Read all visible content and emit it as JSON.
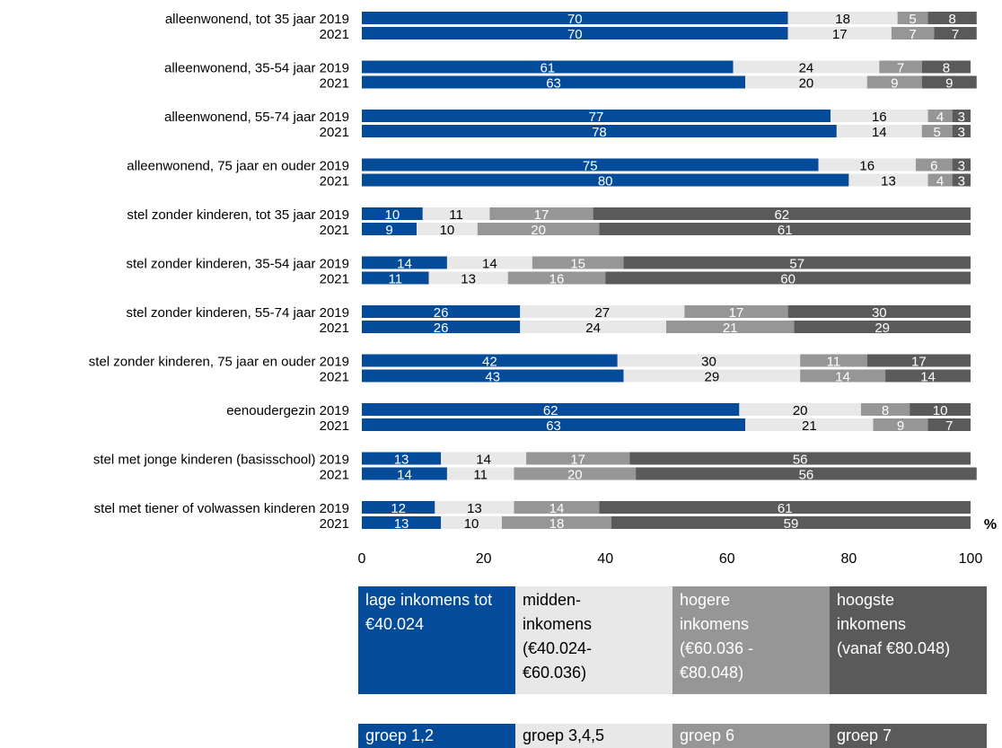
{
  "chart_data": {
    "type": "bar",
    "orientation": "horizontal",
    "stacked": true,
    "unit_label": "%",
    "xlim": [
      0,
      100
    ],
    "x_ticks": [
      "0",
      "20",
      "40",
      "60",
      "80",
      "100"
    ],
    "grid": false,
    "categories": [
      {
        "group": "alleenwonend, tot 35 jaar",
        "year_labels": [
          "2019",
          "2021"
        ]
      },
      {
        "group": "alleenwonend, 35-54 jaar",
        "year_labels": [
          "2019",
          "2021"
        ]
      },
      {
        "group": "alleenwonend, 55-74 jaar",
        "year_labels": [
          "2019",
          "2021"
        ]
      },
      {
        "group": "alleenwonend, 75 jaar en ouder",
        "year_labels": [
          "2019",
          "2021"
        ]
      },
      {
        "group": "stel zonder kinderen, tot 35 jaar",
        "year_labels": [
          "2019",
          "2021"
        ]
      },
      {
        "group": "stel zonder kinderen, 35-54 jaar",
        "year_labels": [
          "2019",
          "2021"
        ]
      },
      {
        "group": "stel zonder kinderen, 55-74 jaar",
        "year_labels": [
          "2019",
          "2021"
        ]
      },
      {
        "group": "stel zonder kinderen, 75 jaar en ouder",
        "year_labels": [
          "2019",
          "2021"
        ]
      },
      {
        "group": "eenoudergezin",
        "year_labels": [
          "2019",
          "2021"
        ]
      },
      {
        "group": "stel met jonge kinderen (basisschool)",
        "year_labels": [
          "2019",
          "2021"
        ]
      },
      {
        "group": "stel met tiener of volwassen kinderen",
        "year_labels": [
          "2019",
          "2021"
        ]
      }
    ],
    "series": [
      {
        "name": "lage inkomens tot €40.024",
        "group_label": "groep 1,2",
        "color": "#044B9A",
        "text_color": "#ffffff",
        "values": [
          [
            70,
            70
          ],
          [
            61,
            63
          ],
          [
            77,
            78
          ],
          [
            75,
            80
          ],
          [
            10,
            9
          ],
          [
            14,
            11
          ],
          [
            26,
            26
          ],
          [
            42,
            43
          ],
          [
            62,
            63
          ],
          [
            13,
            14
          ],
          [
            12,
            13
          ]
        ]
      },
      {
        "name": "midden-\ninkomens\n(€40.024-\n€60.036)",
        "group_label": "groep 3,4,5",
        "color": "#E8E8E8",
        "text_color": "#000000",
        "values": [
          [
            18,
            17
          ],
          [
            24,
            20
          ],
          [
            16,
            14
          ],
          [
            16,
            13
          ],
          [
            11,
            10
          ],
          [
            14,
            13
          ],
          [
            27,
            24
          ],
          [
            30,
            29
          ],
          [
            20,
            21
          ],
          [
            14,
            11
          ],
          [
            13,
            10
          ]
        ]
      },
      {
        "name": "hogere\ninkomens\n(€60.036 -\n€80.048)",
        "group_label": "groep 6",
        "color": "#969696",
        "text_color": "#ffffff",
        "values": [
          [
            5,
            7
          ],
          [
            7,
            9
          ],
          [
            4,
            5
          ],
          [
            6,
            4
          ],
          [
            17,
            20
          ],
          [
            15,
            16
          ],
          [
            17,
            21
          ],
          [
            11,
            14
          ],
          [
            8,
            9
          ],
          [
            17,
            20
          ],
          [
            14,
            18
          ]
        ]
      },
      {
        "name": "hoogste\ninkomens\n(vanaf €80.048)",
        "group_label": "groep 7",
        "color": "#5A5A5A",
        "text_color": "#ffffff",
        "values": [
          [
            8,
            7
          ],
          [
            8,
            9
          ],
          [
            3,
            3
          ],
          [
            3,
            3
          ],
          [
            62,
            61
          ],
          [
            57,
            60
          ],
          [
            30,
            29
          ],
          [
            17,
            14
          ],
          [
            10,
            7
          ],
          [
            56,
            56
          ],
          [
            61,
            59
          ]
        ]
      }
    ]
  }
}
